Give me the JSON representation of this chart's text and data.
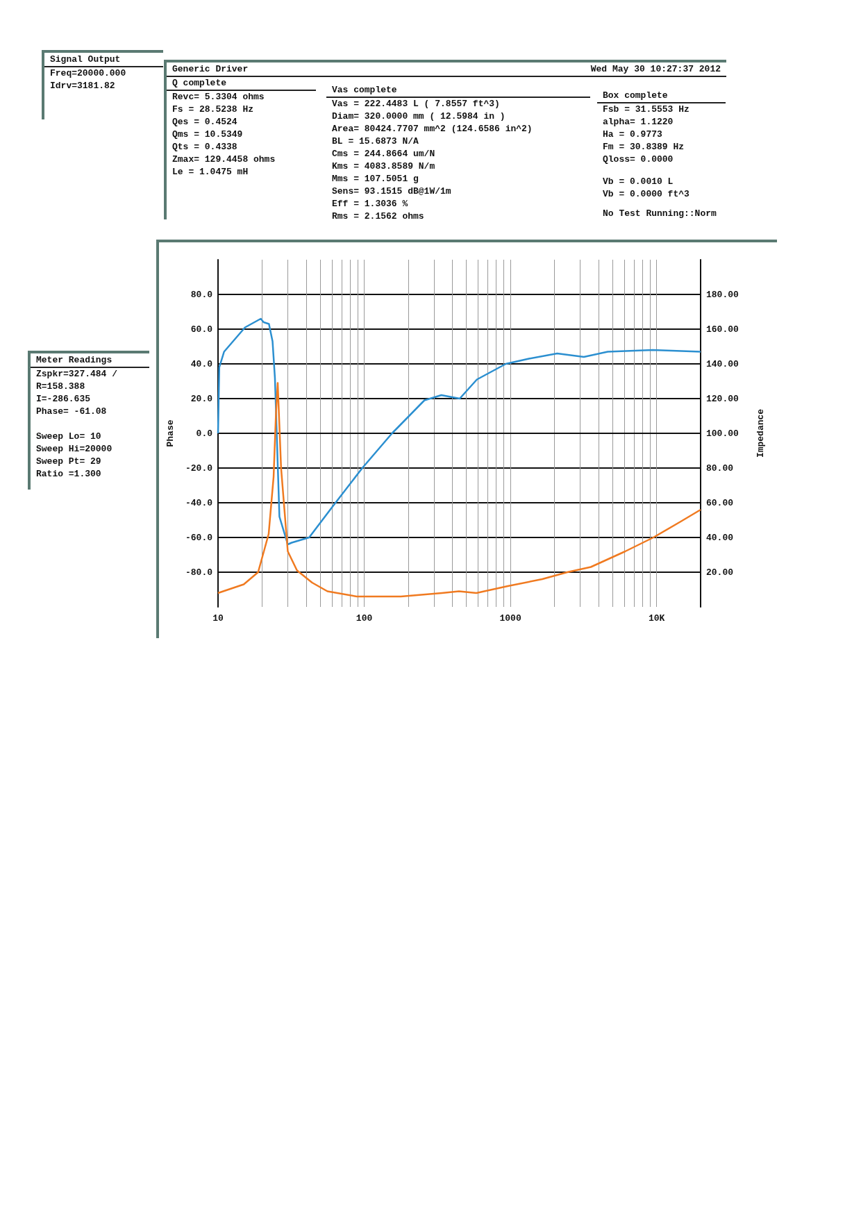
{
  "chart_data": [
    {
      "type": "other",
      "title": "Signal Output",
      "annotations": [
        "Freq=20000.000",
        "Idrv=3181.82"
      ]
    },
    {
      "type": "other",
      "title": "Generic Driver",
      "subtitle": "Wed May 30 10:27:37 2012"
    },
    {
      "type": "other",
      "title": "Q complete",
      "annotations": [
        "Revc= 5.3304 ohms",
        "Fs = 28.5238 Hz",
        "Qes = 0.4524",
        "Qms = 10.5349",
        "Qts = 0.4338",
        "Zmax= 129.4458 ohms",
        "Le = 1.0475 mH"
      ]
    },
    {
      "type": "other",
      "title": "Vas complete",
      "annotations": [
        "Vas = 222.4483 L ( 7.8557 ft^3)",
        "Diam= 320.0000 mm ( 12.5984 in )",
        "Area= 80424.7707 mm^2 (124.6586 in^2)",
        "BL = 15.6873 N/A",
        "Cms = 244.8664 um/N",
        "Kms = 4083.8589 N/m",
        "Mms = 107.5051 g",
        "Sens= 93.1515 dB@1W/1m",
        "Eff = 1.3036 %",
        "Rms = 2.1562 ohms"
      ]
    },
    {
      "type": "other",
      "title": "Box complete",
      "annotations": [
        "Fsb = 31.5553 Hz",
        "alpha= 1.1220",
        "Ha = 0.9773",
        "Fm = 30.8389 Hz",
        "Qloss= 0.0000",
        "Vb = 0.0010 L",
        "Vb = 0.0000 ft^3",
        "No Test Running::Norm"
      ]
    },
    {
      "type": "other",
      "title": "Meter Readings",
      "annotations": [
        "Zspkr=327.484 /",
        "R=158.388",
        "I=-286.635",
        "Phase= -61.08",
        "Sweep Lo= 10",
        "Sweep Hi=20000",
        "Sweep Pt= 29",
        "Ratio =1.300"
      ]
    },
    {
      "type": "line",
      "ylabel": "Phase",
      "y2label": "Impedance",
      "log": "x",
      "grid": true,
      "marker": "none",
      "xlim": [
        10,
        20000
      ],
      "xticks": [
        10,
        {
          "value": 20,
          "label": null
        },
        {
          "value": 30,
          "label": null
        },
        {
          "value": 40,
          "label": null
        },
        {
          "value": 50,
          "label": null
        },
        {
          "value": 60,
          "label": null
        },
        {
          "value": 70,
          "label": null
        },
        {
          "value": 80,
          "label": null
        },
        {
          "value": 90,
          "label": null
        },
        100,
        {
          "value": 200,
          "label": null
        },
        {
          "value": 300,
          "label": null
        },
        {
          "value": 400,
          "label": null
        },
        {
          "value": 500,
          "label": null
        },
        {
          "value": 600,
          "label": null
        },
        {
          "value": 700,
          "label": null
        },
        {
          "value": 800,
          "label": null
        },
        {
          "value": 900,
          "label": null
        },
        1000,
        {
          "value": 2000,
          "label": null
        },
        {
          "value": 3000,
          "label": null
        },
        {
          "value": 4000,
          "label": null
        },
        {
          "value": 5000,
          "label": null
        },
        {
          "value": 6000,
          "label": null
        },
        {
          "value": 7000,
          "label": null
        },
        {
          "value": 8000,
          "label": null
        },
        {
          "value": 9000,
          "label": null
        },
        {
          "value": 10000,
          "label": "10K"
        }
      ],
      "ylim": [
        -100,
        100
      ],
      "yticks": [
        {
          "value": -80,
          "label": "-80.0"
        },
        {
          "value": -60,
          "label": "-60.0"
        },
        {
          "value": -40,
          "label": "-40.0"
        },
        {
          "value": -20,
          "label": "-20.0"
        },
        {
          "value": 0,
          "label": "0.0"
        },
        {
          "value": 20,
          "label": "20.0"
        },
        {
          "value": 40,
          "label": "40.0"
        },
        {
          "value": 60,
          "label": "60.0"
        },
        {
          "value": 80,
          "label": "80.0"
        }
      ],
      "y2lim": [
        0,
        200
      ],
      "y2ticks": [
        {
          "value": 20,
          "label": "20.00"
        },
        {
          "value": 40,
          "label": "40.00"
        },
        {
          "value": 60,
          "label": "60.00"
        },
        {
          "value": 80,
          "label": "80.00"
        },
        {
          "value": 100,
          "label": "100.00"
        },
        {
          "value": 120,
          "label": "120.00"
        },
        {
          "value": 140,
          "label": "140.00"
        },
        {
          "value": 160,
          "label": "160.00"
        },
        {
          "value": 180,
          "label": "180.00"
        }
      ],
      "series": [
        {
          "color": "#2b8fd0",
          "x": [
            10,
            10.2,
            11,
            15.3,
            19.6,
            20.5,
            22.3,
            23.6,
            24.5,
            26.3,
            30,
            31.9,
            42,
            61,
            97,
            155,
            258,
            337,
            450,
            590,
            800,
            930,
            1340,
            2090,
            3180,
            4630,
            9400,
            20000
          ],
          "values": [
            0,
            38,
            47,
            61,
            66,
            64,
            63,
            53,
            32,
            -48,
            -64,
            -63,
            -60,
            -42,
            -20,
            0,
            19,
            22,
            20,
            31,
            37,
            40,
            43,
            46,
            44,
            47,
            48,
            47
          ]
        },
        {
          "color": "#f07a20",
          "axis": "y2",
          "x": [
            10,
            15,
            18.8,
            22.2,
            24,
            24.9,
            25.6,
            27,
            30,
            34.7,
            44,
            56,
            89,
            178,
            340,
            445,
            585,
            960,
            1650,
            2450,
            3550,
            6100,
            9500,
            14500,
            20000
          ],
          "values": [
            8,
            13,
            20,
            42,
            75,
            111,
            129,
            80,
            32,
            21,
            14,
            9,
            6,
            6,
            8,
            9,
            8,
            12,
            16,
            20,
            23,
            32,
            40,
            49,
            56
          ]
        }
      ]
    }
  ]
}
